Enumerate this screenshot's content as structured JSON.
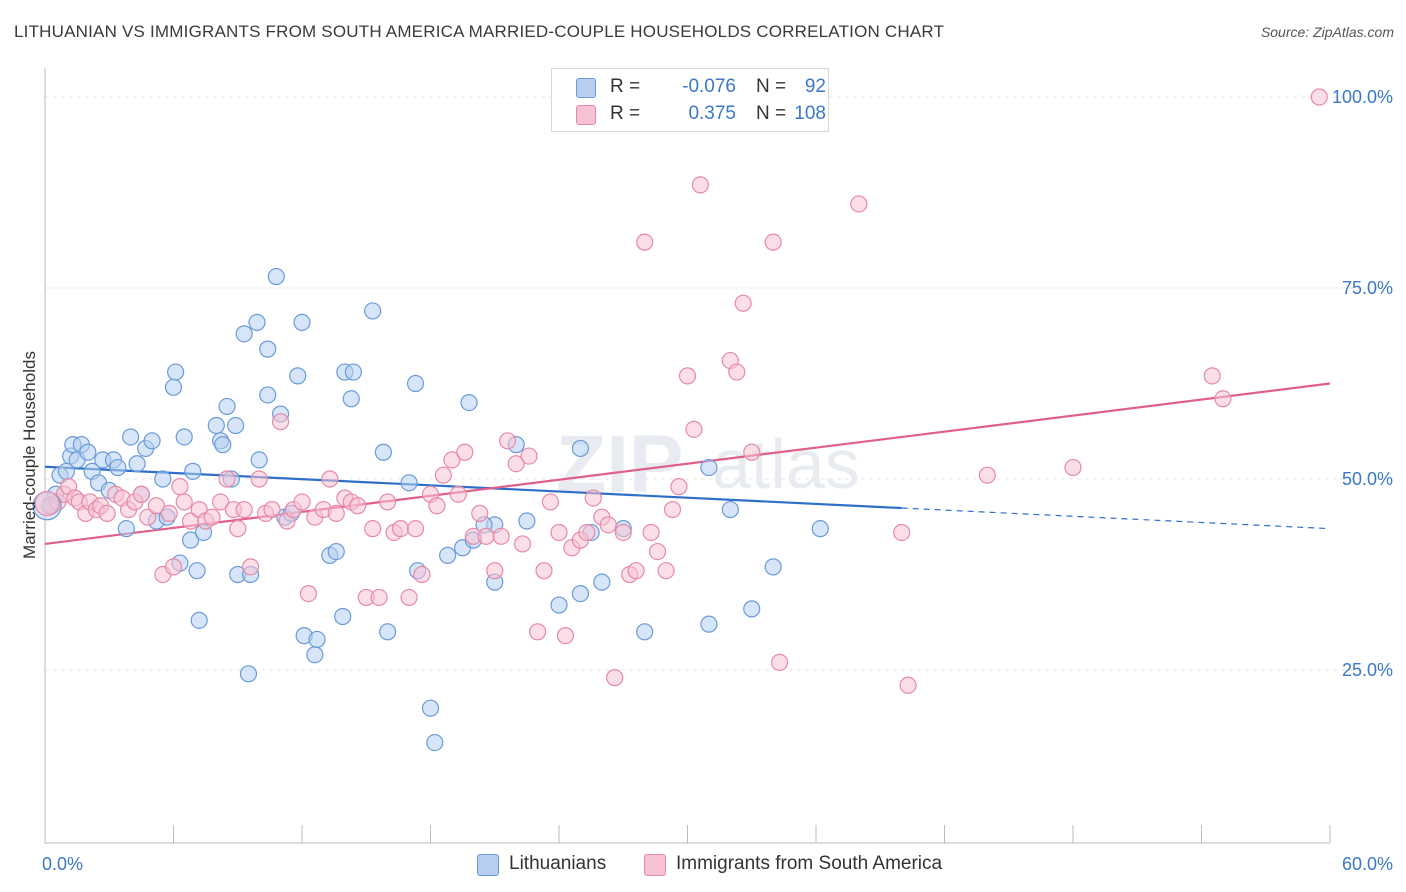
{
  "title": "LITHUANIAN VS IMMIGRANTS FROM SOUTH AMERICA MARRIED-COUPLE HOUSEHOLDS CORRELATION CHART",
  "source": "Source: ZipAtlas.com",
  "watermark": {
    "zip": "ZIP",
    "atlas": "atlas"
  },
  "legend": {
    "r_label": "R =",
    "n_label": "N =",
    "rows": [
      {
        "r": "-0.076",
        "n": "92"
      },
      {
        "r": "0.375",
        "n": "108"
      }
    ]
  },
  "bottom_legend": [
    "Lithuanians",
    "Immigrants from South America"
  ],
  "colors": {
    "blue_fill": "#b7d0f2",
    "blue_stroke": "#6a9bd8",
    "blue_line": "#2e6fc9",
    "pink_fill": "#f7c2d2",
    "pink_stroke": "#e68aa8",
    "pink_line": "#e0608a",
    "tick_label": "#3b78c8",
    "grid": "#e4e4e4"
  },
  "chart_data": {
    "type": "scatter",
    "title": "LITHUANIAN VS IMMIGRANTS FROM SOUTH AMERICA MARRIED-COUPLE HOUSEHOLDS CORRELATION CHART",
    "xlabel": "",
    "ylabel": "Married-couple Households",
    "xlim": [
      0,
      60
    ],
    "ylim": [
      0,
      102
    ],
    "x_tick_labels": [
      "0.0%",
      "60.0%"
    ],
    "y_ticks": [
      25,
      50,
      75,
      100
    ],
    "y_tick_labels": [
      "25.0%",
      "50.0%",
      "75.0%",
      "100.0%"
    ],
    "grid": true,
    "legend_placement": "top-center",
    "series": [
      {
        "name": "Lithuanians",
        "r": -0.076,
        "n": 92,
        "trend": {
          "x": [
            0,
            40
          ],
          "y": [
            51.6,
            46.2
          ],
          "dashed_to": [
            60,
            43.5
          ]
        },
        "points": [
          [
            0.3,
            46.5
          ],
          [
            0.5,
            48
          ],
          [
            0.7,
            50.5
          ],
          [
            1,
            51
          ],
          [
            1.2,
            53
          ],
          [
            1.3,
            54.5
          ],
          [
            1.5,
            52.5
          ],
          [
            1.7,
            54.5
          ],
          [
            2,
            53.5
          ],
          [
            2.2,
            51
          ],
          [
            2.5,
            49.5
          ],
          [
            2.7,
            52.5
          ],
          [
            3,
            48.5
          ],
          [
            3.2,
            52.5
          ],
          [
            3.4,
            51.5
          ],
          [
            3.8,
            43.5
          ],
          [
            4,
            55.5
          ],
          [
            4.3,
            52
          ],
          [
            4.5,
            48
          ],
          [
            4.7,
            54
          ],
          [
            5,
            55
          ],
          [
            5.2,
            44.5
          ],
          [
            5.5,
            50
          ],
          [
            5.7,
            45
          ],
          [
            6,
            62
          ],
          [
            6.1,
            64
          ],
          [
            6.3,
            39
          ],
          [
            6.5,
            55.5
          ],
          [
            6.8,
            42
          ],
          [
            6.9,
            51
          ],
          [
            7.1,
            38
          ],
          [
            7.2,
            31.5
          ],
          [
            7.4,
            43
          ],
          [
            8,
            57
          ],
          [
            8.2,
            55
          ],
          [
            8.3,
            54.5
          ],
          [
            8.5,
            59.5
          ],
          [
            8.7,
            50
          ],
          [
            8.9,
            57
          ],
          [
            9,
            37.5
          ],
          [
            9.3,
            69
          ],
          [
            9.5,
            24.5
          ],
          [
            9.6,
            37.5
          ],
          [
            9.9,
            70.5
          ],
          [
            10,
            52.5
          ],
          [
            10.4,
            67
          ],
          [
            10.4,
            61
          ],
          [
            10.8,
            76.5
          ],
          [
            11,
            58.5
          ],
          [
            11.2,
            45
          ],
          [
            11.8,
            63.5
          ],
          [
            12,
            70.5
          ],
          [
            12.1,
            29.5
          ],
          [
            12.6,
            27
          ],
          [
            12.7,
            29
          ],
          [
            11.5,
            45.5
          ],
          [
            13.3,
            40
          ],
          [
            13.6,
            40.5
          ],
          [
            13.9,
            32
          ],
          [
            14,
            64
          ],
          [
            14.3,
            60.5
          ],
          [
            14.4,
            64
          ],
          [
            15.3,
            72
          ],
          [
            15.8,
            53.5
          ],
          [
            16,
            30
          ],
          [
            17.3,
            62.5
          ],
          [
            17.4,
            38
          ],
          [
            18,
            20
          ],
          [
            18.2,
            15.5
          ],
          [
            18.8,
            40
          ],
          [
            19.5,
            41
          ],
          [
            20,
            42
          ],
          [
            22,
            54.5
          ],
          [
            21,
            36.5
          ],
          [
            24,
            33.5
          ],
          [
            25,
            35
          ],
          [
            25,
            54
          ],
          [
            26,
            36.5
          ],
          [
            25.5,
            43
          ],
          [
            27,
            43.5
          ],
          [
            28,
            30
          ],
          [
            31,
            31
          ],
          [
            31,
            51.5
          ],
          [
            32,
            46
          ],
          [
            33,
            33
          ],
          [
            34,
            38.5
          ],
          [
            36.2,
            43.5
          ],
          [
            21,
            44
          ],
          [
            20.5,
            44
          ],
          [
            22.5,
            44.5
          ],
          [
            17,
            49.5
          ],
          [
            19.8,
            60
          ]
        ]
      },
      {
        "name": "Immigrants from South America",
        "r": 0.375,
        "n": 108,
        "trend": {
          "x": [
            0,
            60
          ],
          "y": [
            41.5,
            62.5
          ]
        },
        "points": [
          [
            0.2,
            46.5
          ],
          [
            0.6,
            47
          ],
          [
            0.9,
            48
          ],
          [
            1.1,
            49
          ],
          [
            1.4,
            47.5
          ],
          [
            1.6,
            47
          ],
          [
            1.9,
            45.5
          ],
          [
            2.1,
            47
          ],
          [
            2.4,
            46
          ],
          [
            2.6,
            46.5
          ],
          [
            2.9,
            45.5
          ],
          [
            3.3,
            48
          ],
          [
            3.6,
            47.5
          ],
          [
            3.9,
            46
          ],
          [
            4.2,
            47
          ],
          [
            4.5,
            48
          ],
          [
            4.8,
            45
          ],
          [
            5.2,
            46.5
          ],
          [
            5.5,
            37.5
          ],
          [
            5.8,
            45.5
          ],
          [
            6,
            38.5
          ],
          [
            6.3,
            49
          ],
          [
            6.5,
            47
          ],
          [
            6.8,
            44.5
          ],
          [
            7.2,
            46
          ],
          [
            7.5,
            44.5
          ],
          [
            7.8,
            45
          ],
          [
            8.2,
            47
          ],
          [
            8.5,
            50
          ],
          [
            8.8,
            46
          ],
          [
            9,
            43.5
          ],
          [
            9.3,
            46
          ],
          [
            9.6,
            38.5
          ],
          [
            10,
            50
          ],
          [
            10.3,
            45.5
          ],
          [
            10.6,
            46
          ],
          [
            11,
            57.5
          ],
          [
            11.3,
            44.5
          ],
          [
            11.6,
            46
          ],
          [
            12,
            47
          ],
          [
            12.3,
            35
          ],
          [
            12.6,
            45
          ],
          [
            13,
            46
          ],
          [
            13.3,
            50
          ],
          [
            13.6,
            45.5
          ],
          [
            14,
            47.5
          ],
          [
            14.3,
            47
          ],
          [
            14.6,
            46.5
          ],
          [
            15,
            34.5
          ],
          [
            15.3,
            43.5
          ],
          [
            15.6,
            34.5
          ],
          [
            16,
            47
          ],
          [
            16.3,
            43
          ],
          [
            16.6,
            43.5
          ],
          [
            17,
            34.5
          ],
          [
            17.3,
            43.5
          ],
          [
            17.6,
            37.5
          ],
          [
            18,
            48
          ],
          [
            18.3,
            46.5
          ],
          [
            18.6,
            50.5
          ],
          [
            19,
            52.5
          ],
          [
            19.3,
            48
          ],
          [
            19.6,
            53.5
          ],
          [
            20,
            42.5
          ],
          [
            20.3,
            45.5
          ],
          [
            20.6,
            42.5
          ],
          [
            21,
            38
          ],
          [
            21.3,
            42.5
          ],
          [
            21.6,
            55
          ],
          [
            22,
            52
          ],
          [
            22.3,
            41.5
          ],
          [
            22.6,
            53
          ],
          [
            23,
            30
          ],
          [
            23.3,
            38
          ],
          [
            23.6,
            47
          ],
          [
            24,
            43
          ],
          [
            24.3,
            29.5
          ],
          [
            24.6,
            41
          ],
          [
            25,
            42
          ],
          [
            25.3,
            43
          ],
          [
            25.6,
            47.5
          ],
          [
            26,
            45
          ],
          [
            26.3,
            44
          ],
          [
            26.6,
            24
          ],
          [
            27,
            43
          ],
          [
            27.3,
            37.5
          ],
          [
            27.6,
            38
          ],
          [
            28,
            81
          ],
          [
            28.3,
            43
          ],
          [
            28.6,
            40.5
          ],
          [
            29,
            38
          ],
          [
            29.3,
            46
          ],
          [
            29.6,
            49
          ],
          [
            30,
            63.5
          ],
          [
            30.3,
            56.5
          ],
          [
            30.6,
            88.5
          ],
          [
            32,
            65.5
          ],
          [
            32.3,
            64
          ],
          [
            32.6,
            73
          ],
          [
            33,
            53.5
          ],
          [
            34,
            81
          ],
          [
            34.3,
            26
          ],
          [
            38,
            86
          ],
          [
            40,
            43
          ],
          [
            40.3,
            23
          ],
          [
            44,
            50.5
          ],
          [
            48,
            51.5
          ],
          [
            54.5,
            63.5
          ],
          [
            55,
            60.5
          ],
          [
            59.5,
            100
          ]
        ]
      }
    ]
  }
}
